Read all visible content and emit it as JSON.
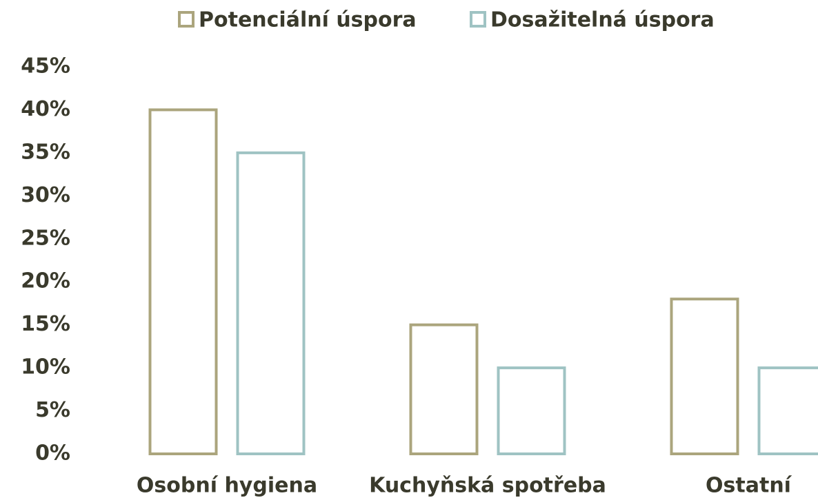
{
  "chart_data": {
    "type": "bar",
    "categories": [
      "Osobní hygiena",
      "Kuchyňská spotřeba",
      "Ostatní"
    ],
    "series": [
      {
        "name": "Potenciální úspora",
        "color": "#aba57d",
        "values": [
          40,
          15,
          18
        ]
      },
      {
        "name": "Dosažitelná úspora",
        "color": "#9fc3c3",
        "values": [
          35,
          10,
          10
        ]
      }
    ],
    "ylim": [
      0,
      45
    ],
    "yticks": [
      {
        "value": 0,
        "label": "0%"
      },
      {
        "value": 5,
        "label": "5%"
      },
      {
        "value": 10,
        "label": "10%"
      },
      {
        "value": 15,
        "label": "15%"
      },
      {
        "value": 20,
        "label": "20%"
      },
      {
        "value": 25,
        "label": "25%"
      },
      {
        "value": 30,
        "label": "30%"
      },
      {
        "value": 35,
        "label": "35%"
      },
      {
        "value": 40,
        "label": "40%"
      },
      {
        "value": 45,
        "label": "45%"
      }
    ],
    "legend": "top",
    "grid": false
  }
}
